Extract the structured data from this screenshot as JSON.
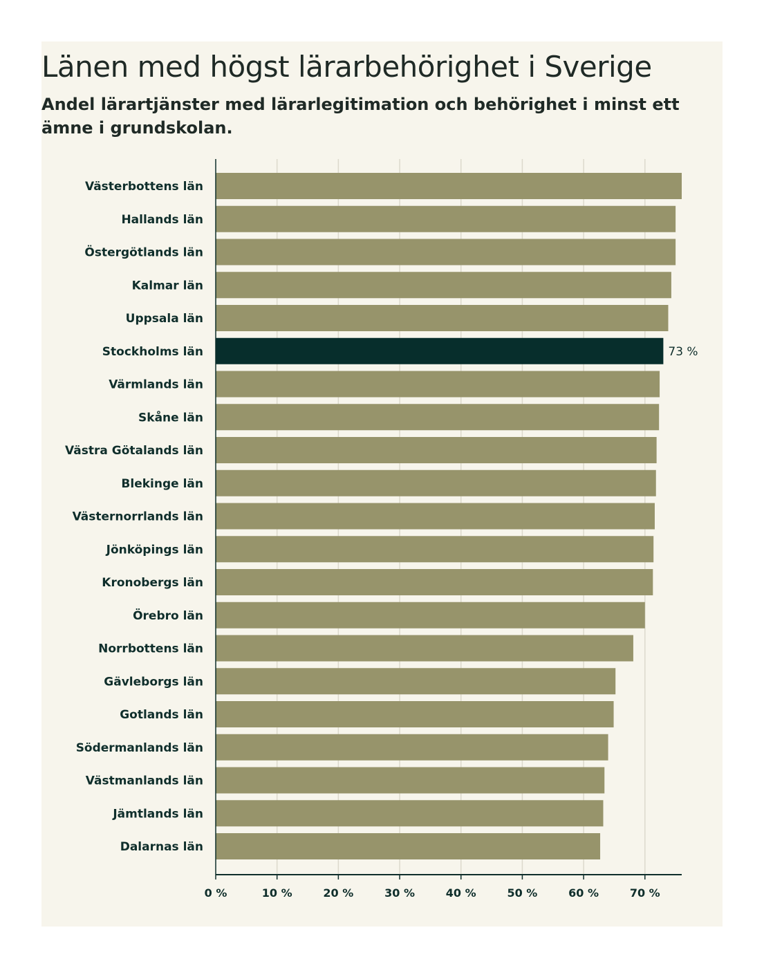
{
  "chart_data": {
    "type": "bar",
    "orientation": "horizontal",
    "title": "Länen med högst lärarbehörighet i Sverige",
    "subtitle": "Andel lärartjänster med lärarlegitimation och behörighet i minst ett ämne i grundskolan.",
    "xlabel": "",
    "ylabel": "",
    "xlim": [
      0,
      76
    ],
    "ticks": [
      0,
      10,
      20,
      30,
      40,
      50,
      60,
      70
    ],
    "tick_labels": [
      "0 %",
      "10 %",
      "20 %",
      "30 %",
      "40 %",
      "50 %",
      "60 %",
      "70 %"
    ],
    "grid": true,
    "categories": [
      "Västerbottens län",
      "Hallands län",
      "Östergötlands län",
      "Kalmar län",
      "Uppsala län",
      "Stockholms län",
      "Värmlands län",
      "Skåne län",
      "Västra Götalands län",
      "Blekinge län",
      "Västernorrlands län",
      "Jönköpings län",
      "Kronobergs län",
      "Örebro län",
      "Norrbottens län",
      "Gävleborgs län",
      "Gotlands län",
      "Södermanlands län",
      "Västmanlands län",
      "Jämtlands län",
      "Dalarnas län"
    ],
    "values": [
      76.0,
      75.0,
      75.0,
      74.3,
      73.8,
      73.0,
      72.4,
      72.3,
      71.9,
      71.8,
      71.6,
      71.4,
      71.3,
      70.0,
      68.1,
      65.2,
      64.9,
      64.0,
      63.4,
      63.2,
      62.7
    ],
    "highlight_index": 5,
    "highlight_label": "73 %",
    "colors": {
      "bar": "#97946b",
      "highlight": "#072e2c",
      "grid": "#dcd9cc",
      "axis": "#0f2e2b",
      "background": "#f7f5ec"
    }
  }
}
